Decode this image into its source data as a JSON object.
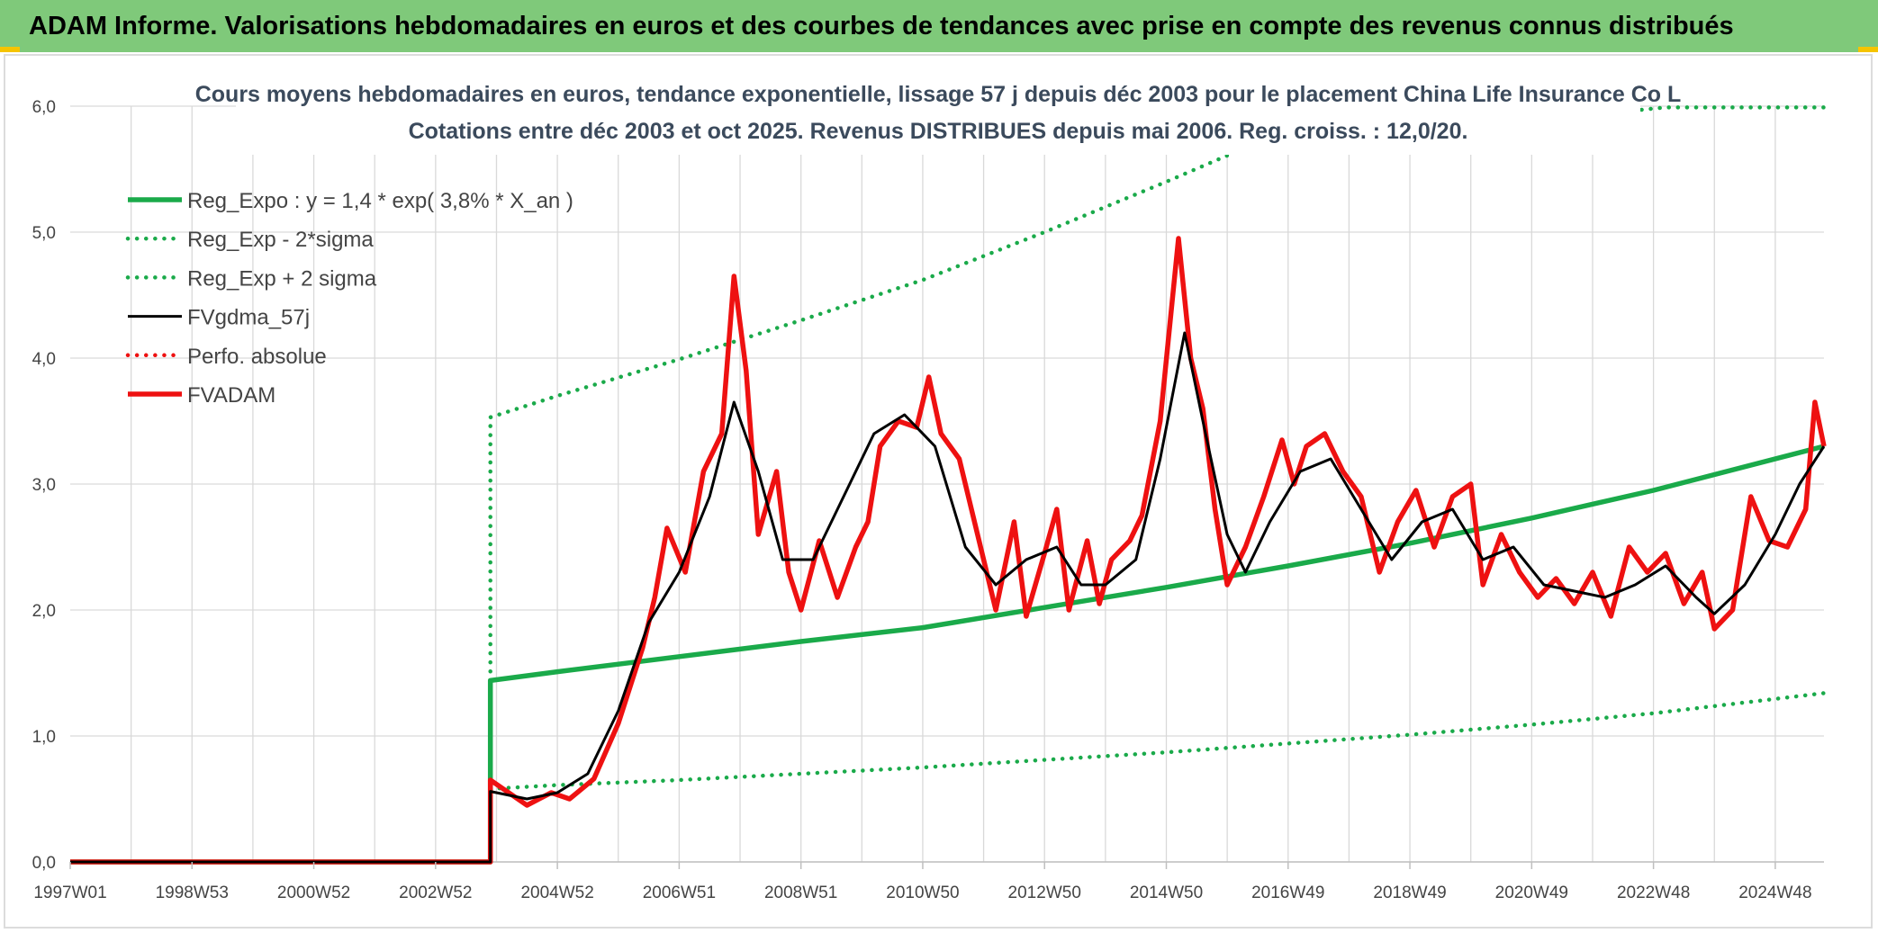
{
  "header": {
    "title": "ADAM Informe. Valorisations hebdomadaires en euros et des courbes de tendances avec prise en compte des revenus connus distribués"
  },
  "colors": {
    "banner": "#7fc97a",
    "trend": "#1aaa4a",
    "price": "#ee1111",
    "smooth": "#000000",
    "grid": "#d9d9d9"
  },
  "chart_data": {
    "type": "line",
    "title_lines": [
      "Cours moyens hebdomadaires en euros, tendance exponentielle, lissage 57 j depuis déc 2003 pour le placement China Life Insurance Co L",
      "Cotations entre déc 2003 et oct 2025. Revenus DISTRIBUES depuis mai 2006. Reg. croiss. : 12,0/20."
    ],
    "xlabel": "",
    "ylabel": "",
    "x_range_years": [
      1997.0,
      2025.8
    ],
    "ylim": [
      0,
      6
    ],
    "y_ticks": [
      "0,0",
      "1,0",
      "2,0",
      "3,0",
      "4,0",
      "5,0",
      "6,0"
    ],
    "x_ticks": [
      {
        "label": "1997W01",
        "year": 1997.0
      },
      {
        "label": "1998W53",
        "year": 1999.0
      },
      {
        "label": "2000W52",
        "year": 2001.0
      },
      {
        "label": "2002W52",
        "year": 2003.0
      },
      {
        "label": "2004W52",
        "year": 2005.0
      },
      {
        "label": "2006W51",
        "year": 2007.0
      },
      {
        "label": "2008W51",
        "year": 2009.0
      },
      {
        "label": "2010W50",
        "year": 2011.0
      },
      {
        "label": "2012W50",
        "year": 2013.0
      },
      {
        "label": "2014W50",
        "year": 2015.0
      },
      {
        "label": "2016W49",
        "year": 2017.0
      },
      {
        "label": "2018W49",
        "year": 2019.0
      },
      {
        "label": "2020W49",
        "year": 2021.0
      },
      {
        "label": "2022W48",
        "year": 2023.0
      },
      {
        "label": "2024W48",
        "year": 2025.0
      }
    ],
    "grid": true,
    "legend_position": "top-left",
    "legend": [
      {
        "name": "Reg_Expo : y = 1,4 * exp( 3,8% *  X_an )",
        "style": "solid-thick",
        "color": "#1aaa4a"
      },
      {
        "name": "Reg_Exp - 2*sigma",
        "style": "dotted",
        "color": "#1aaa4a"
      },
      {
        "name": "Reg_Exp + 2 sigma",
        "style": "dotted",
        "color": "#1aaa4a"
      },
      {
        "name": "FVgdma_57j",
        "style": "solid",
        "color": "#000000"
      },
      {
        "name": "Perfo. absolue",
        "style": "dotted",
        "color": "#ee1111"
      },
      {
        "name": "FVADAM",
        "style": "solid-thick",
        "color": "#ee1111"
      }
    ],
    "series": [
      {
        "name": "Reg_Expo : y = 1,4 * exp( 3,8% *  X_an )",
        "style": "solid-thick",
        "color": "#1aaa4a",
        "points": [
          [
            1997.0,
            0
          ],
          [
            2003.9,
            0
          ],
          [
            2003.9,
            1.44
          ],
          [
            2005,
            1.51
          ],
          [
            2007,
            1.63
          ],
          [
            2009,
            1.75
          ],
          [
            2011,
            1.86
          ],
          [
            2013,
            2.02
          ],
          [
            2015,
            2.18
          ],
          [
            2017,
            2.35
          ],
          [
            2019,
            2.53
          ],
          [
            2021,
            2.73
          ],
          [
            2023,
            2.95
          ],
          [
            2025.8,
            3.3
          ]
        ]
      },
      {
        "name": "Reg_Exp - 2*sigma",
        "style": "dotted",
        "color": "#1aaa4a",
        "points": [
          [
            2003.9,
            0.58
          ],
          [
            2005,
            0.61
          ],
          [
            2007,
            0.65
          ],
          [
            2009,
            0.7
          ],
          [
            2011,
            0.75
          ],
          [
            2013,
            0.81
          ],
          [
            2015,
            0.87
          ],
          [
            2017,
            0.94
          ],
          [
            2019,
            1.01
          ],
          [
            2021,
            1.09
          ],
          [
            2023,
            1.18
          ],
          [
            2025.8,
            1.34
          ]
        ]
      },
      {
        "name": "Reg_Exp + 2 sigma",
        "style": "dotted",
        "color": "#1aaa4a",
        "points": [
          [
            2003.9,
            1.44
          ],
          [
            2003.9,
            3.53
          ],
          [
            2005,
            3.7
          ],
          [
            2007,
            3.99
          ],
          [
            2009,
            4.3
          ],
          [
            2011,
            4.62
          ],
          [
            2013,
            5.0
          ],
          [
            2015,
            5.4
          ],
          [
            2016.3,
            5.67
          ],
          [
            2023.2,
            5.99
          ],
          [
            2025.8,
            5.99
          ]
        ]
      },
      {
        "name": "FVgdma_57j",
        "style": "solid",
        "color": "#000000",
        "points": [
          [
            1997.0,
            0
          ],
          [
            2003.9,
            0
          ],
          [
            2003.9,
            0.56
          ],
          [
            2004.5,
            0.5
          ],
          [
            2005.0,
            0.55
          ],
          [
            2005.5,
            0.7
          ],
          [
            2006.0,
            1.2
          ],
          [
            2006.5,
            1.9
          ],
          [
            2007.0,
            2.3
          ],
          [
            2007.5,
            2.9
          ],
          [
            2007.9,
            3.65
          ],
          [
            2008.3,
            3.1
          ],
          [
            2008.7,
            2.4
          ],
          [
            2009.2,
            2.4
          ],
          [
            2009.7,
            2.9
          ],
          [
            2010.2,
            3.4
          ],
          [
            2010.7,
            3.55
          ],
          [
            2011.2,
            3.3
          ],
          [
            2011.7,
            2.5
          ],
          [
            2012.2,
            2.2
          ],
          [
            2012.7,
            2.4
          ],
          [
            2013.2,
            2.5
          ],
          [
            2013.6,
            2.2
          ],
          [
            2014.0,
            2.2
          ],
          [
            2014.5,
            2.4
          ],
          [
            2014.9,
            3.2
          ],
          [
            2015.3,
            4.2
          ],
          [
            2015.6,
            3.5
          ],
          [
            2016.0,
            2.6
          ],
          [
            2016.3,
            2.3
          ],
          [
            2016.7,
            2.7
          ],
          [
            2017.2,
            3.1
          ],
          [
            2017.7,
            3.2
          ],
          [
            2018.2,
            2.8
          ],
          [
            2018.7,
            2.4
          ],
          [
            2019.2,
            2.7
          ],
          [
            2019.7,
            2.8
          ],
          [
            2020.2,
            2.4
          ],
          [
            2020.7,
            2.5
          ],
          [
            2021.2,
            2.2
          ],
          [
            2021.7,
            2.15
          ],
          [
            2022.2,
            2.1
          ],
          [
            2022.7,
            2.2
          ],
          [
            2023.2,
            2.35
          ],
          [
            2023.7,
            2.1
          ],
          [
            2024.0,
            1.97
          ],
          [
            2024.5,
            2.2
          ],
          [
            2025.0,
            2.6
          ],
          [
            2025.4,
            3.0
          ],
          [
            2025.8,
            3.3
          ]
        ]
      },
      {
        "name": "FVADAM",
        "style": "solid-thick",
        "color": "#ee1111",
        "points": [
          [
            1997.0,
            0
          ],
          [
            2003.9,
            0
          ],
          [
            2003.9,
            0.65
          ],
          [
            2004.2,
            0.55
          ],
          [
            2004.5,
            0.45
          ],
          [
            2004.9,
            0.55
          ],
          [
            2005.2,
            0.5
          ],
          [
            2005.6,
            0.66
          ],
          [
            2006.0,
            1.1
          ],
          [
            2006.4,
            1.7
          ],
          [
            2006.6,
            2.1
          ],
          [
            2006.8,
            2.65
          ],
          [
            2007.1,
            2.3
          ],
          [
            2007.4,
            3.1
          ],
          [
            2007.7,
            3.4
          ],
          [
            2007.9,
            4.65
          ],
          [
            2008.1,
            3.9
          ],
          [
            2008.3,
            2.6
          ],
          [
            2008.6,
            3.1
          ],
          [
            2008.8,
            2.3
          ],
          [
            2009.0,
            2.0
          ],
          [
            2009.3,
            2.55
          ],
          [
            2009.6,
            2.1
          ],
          [
            2009.9,
            2.5
          ],
          [
            2010.1,
            2.7
          ],
          [
            2010.3,
            3.3
          ],
          [
            2010.6,
            3.5
          ],
          [
            2010.9,
            3.45
          ],
          [
            2011.1,
            3.85
          ],
          [
            2011.3,
            3.4
          ],
          [
            2011.6,
            3.2
          ],
          [
            2011.9,
            2.6
          ],
          [
            2012.2,
            2.0
          ],
          [
            2012.5,
            2.7
          ],
          [
            2012.7,
            1.95
          ],
          [
            2013.0,
            2.45
          ],
          [
            2013.2,
            2.8
          ],
          [
            2013.4,
            2.0
          ],
          [
            2013.7,
            2.55
          ],
          [
            2013.9,
            2.05
          ],
          [
            2014.1,
            2.4
          ],
          [
            2014.4,
            2.55
          ],
          [
            2014.6,
            2.75
          ],
          [
            2014.9,
            3.5
          ],
          [
            2015.2,
            4.95
          ],
          [
            2015.4,
            4.0
          ],
          [
            2015.6,
            3.6
          ],
          [
            2015.8,
            2.8
          ],
          [
            2016.0,
            2.2
          ],
          [
            2016.3,
            2.5
          ],
          [
            2016.6,
            2.9
          ],
          [
            2016.9,
            3.35
          ],
          [
            2017.1,
            3.0
          ],
          [
            2017.3,
            3.3
          ],
          [
            2017.6,
            3.4
          ],
          [
            2017.9,
            3.1
          ],
          [
            2018.2,
            2.9
          ],
          [
            2018.5,
            2.3
          ],
          [
            2018.8,
            2.7
          ],
          [
            2019.1,
            2.95
          ],
          [
            2019.4,
            2.5
          ],
          [
            2019.7,
            2.9
          ],
          [
            2020.0,
            3.0
          ],
          [
            2020.2,
            2.2
          ],
          [
            2020.5,
            2.6
          ],
          [
            2020.8,
            2.3
          ],
          [
            2021.1,
            2.1
          ],
          [
            2021.4,
            2.25
          ],
          [
            2021.7,
            2.05
          ],
          [
            2022.0,
            2.3
          ],
          [
            2022.3,
            1.95
          ],
          [
            2022.6,
            2.5
          ],
          [
            2022.9,
            2.3
          ],
          [
            2023.2,
            2.45
          ],
          [
            2023.5,
            2.05
          ],
          [
            2023.8,
            2.3
          ],
          [
            2024.0,
            1.85
          ],
          [
            2024.3,
            2.0
          ],
          [
            2024.6,
            2.9
          ],
          [
            2024.9,
            2.55
          ],
          [
            2025.2,
            2.5
          ],
          [
            2025.5,
            2.8
          ],
          [
            2025.65,
            3.65
          ],
          [
            2025.8,
            3.3
          ]
        ]
      }
    ]
  }
}
